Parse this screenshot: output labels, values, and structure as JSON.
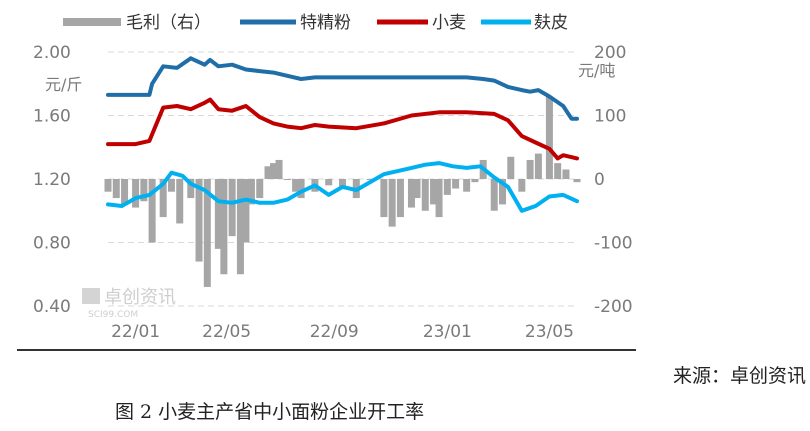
{
  "source_text": "来源：卓创资讯",
  "figure_caption": "图 2  小麦主产省中小面粉企业开工率",
  "watermark": {
    "brand": "卓创资讯",
    "site": "SCI99.COM"
  },
  "chart_data": {
    "type": "line",
    "legend": [
      "毛利（右）",
      "特精粉",
      "小麦",
      "麸皮"
    ],
    "colors": {
      "毛利（右）": "#a6a6a6",
      "特精粉": "#1f6ea8",
      "小麦": "#c00000",
      "麸皮": "#00b0f0"
    },
    "x_ticks": [
      "22/01",
      "22/05",
      "22/09",
      "23/01",
      "23/05"
    ],
    "x_range": [
      0,
      17
    ],
    "left_axis": {
      "unit": "元/斤",
      "ticks": [
        "2.00",
        "1.60",
        "1.20",
        "0.80",
        "0.40"
      ],
      "range": [
        0.4,
        2.0
      ]
    },
    "right_axis": {
      "unit": "元/吨",
      "ticks": [
        "200",
        "100",
        "0",
        "-100",
        "-200"
      ],
      "range": [
        -200,
        200
      ]
    },
    "series": [
      {
        "name": "特精粉",
        "axis": "left",
        "kind": "line",
        "x": [
          0,
          1.5,
          1.6,
          2.0,
          2.5,
          3.0,
          3.5,
          3.7,
          4.0,
          4.5,
          5.0,
          5.5,
          6.0,
          6.5,
          7.0,
          7.5,
          8.0,
          9.0,
          10.0,
          11.0,
          12.0,
          13.0,
          13.6,
          14.0,
          14.5,
          15.0,
          15.3,
          15.6,
          16.0,
          16.5,
          16.8,
          17.0
        ],
        "y": [
          1.73,
          1.73,
          1.8,
          1.91,
          1.9,
          1.96,
          1.92,
          1.95,
          1.91,
          1.92,
          1.89,
          1.88,
          1.87,
          1.85,
          1.83,
          1.84,
          1.84,
          1.84,
          1.84,
          1.84,
          1.84,
          1.84,
          1.83,
          1.82,
          1.78,
          1.76,
          1.75,
          1.76,
          1.72,
          1.66,
          1.58,
          1.58
        ]
      },
      {
        "name": "小麦",
        "axis": "left",
        "kind": "line",
        "x": [
          0,
          1.0,
          1.5,
          2.0,
          2.5,
          3.0,
          3.5,
          3.7,
          4.0,
          4.5,
          5.0,
          5.5,
          6.0,
          6.5,
          7.0,
          7.5,
          8.0,
          9.0,
          10.0,
          11.0,
          12.0,
          13.0,
          14.0,
          14.5,
          15.0,
          15.5,
          16.0,
          16.3,
          16.5,
          17.0
        ],
        "y": [
          1.42,
          1.42,
          1.44,
          1.65,
          1.66,
          1.64,
          1.68,
          1.7,
          1.64,
          1.63,
          1.66,
          1.59,
          1.55,
          1.53,
          1.52,
          1.54,
          1.53,
          1.52,
          1.55,
          1.6,
          1.62,
          1.62,
          1.61,
          1.57,
          1.47,
          1.43,
          1.39,
          1.33,
          1.35,
          1.33
        ]
      },
      {
        "name": "麸皮",
        "axis": "left",
        "kind": "line",
        "x": [
          0,
          0.5,
          1.0,
          1.5,
          2.0,
          2.3,
          2.7,
          3.0,
          3.5,
          4.0,
          4.5,
          5.0,
          5.5,
          6.0,
          6.5,
          7.0,
          7.5,
          8.0,
          8.5,
          9.0,
          10.0,
          11.0,
          11.5,
          12.0,
          12.5,
          13.0,
          13.5,
          14.0,
          14.5,
          15.0,
          15.5,
          16.0,
          16.5,
          17.0
        ],
        "y": [
          1.04,
          1.03,
          1.08,
          1.1,
          1.17,
          1.24,
          1.22,
          1.17,
          1.13,
          1.06,
          1.05,
          1.07,
          1.05,
          1.05,
          1.07,
          1.12,
          1.16,
          1.1,
          1.15,
          1.13,
          1.23,
          1.27,
          1.29,
          1.3,
          1.28,
          1.27,
          1.28,
          1.21,
          1.15,
          1.0,
          1.03,
          1.09,
          1.1,
          1.06
        ]
      },
      {
        "name": "毛利（右）",
        "axis": "right",
        "kind": "bar",
        "x": [
          0,
          0.3,
          0.6,
          1.0,
          1.3,
          1.6,
          2.0,
          2.3,
          2.6,
          3.0,
          3.3,
          3.6,
          4.0,
          4.2,
          4.5,
          4.8,
          5.0,
          5.2,
          5.5,
          5.8,
          6.0,
          6.2,
          6.5,
          6.8,
          7.0,
          7.5,
          8.0,
          8.5,
          9.0,
          9.5,
          10.0,
          10.3,
          10.6,
          11.0,
          11.2,
          11.5,
          11.8,
          12.0,
          12.3,
          12.6,
          13.0,
          13.3,
          13.6,
          14.0,
          14.3,
          14.6,
          15.0,
          15.3,
          15.6,
          16.0,
          16.3,
          16.6,
          17.0
        ],
        "y": [
          -20,
          -30,
          -40,
          -45,
          -35,
          -100,
          -60,
          -20,
          -70,
          -30,
          -130,
          -170,
          -110,
          -150,
          -90,
          -150,
          -100,
          -40,
          -30,
          20,
          25,
          30,
          0,
          -20,
          -30,
          -20,
          -10,
          -15,
          -30,
          0,
          -60,
          -75,
          -60,
          -45,
          -30,
          -50,
          -40,
          -60,
          -25,
          -15,
          -20,
          -5,
          30,
          -50,
          -40,
          35,
          -20,
          30,
          40,
          130,
          25,
          15,
          -5
        ]
      }
    ]
  }
}
